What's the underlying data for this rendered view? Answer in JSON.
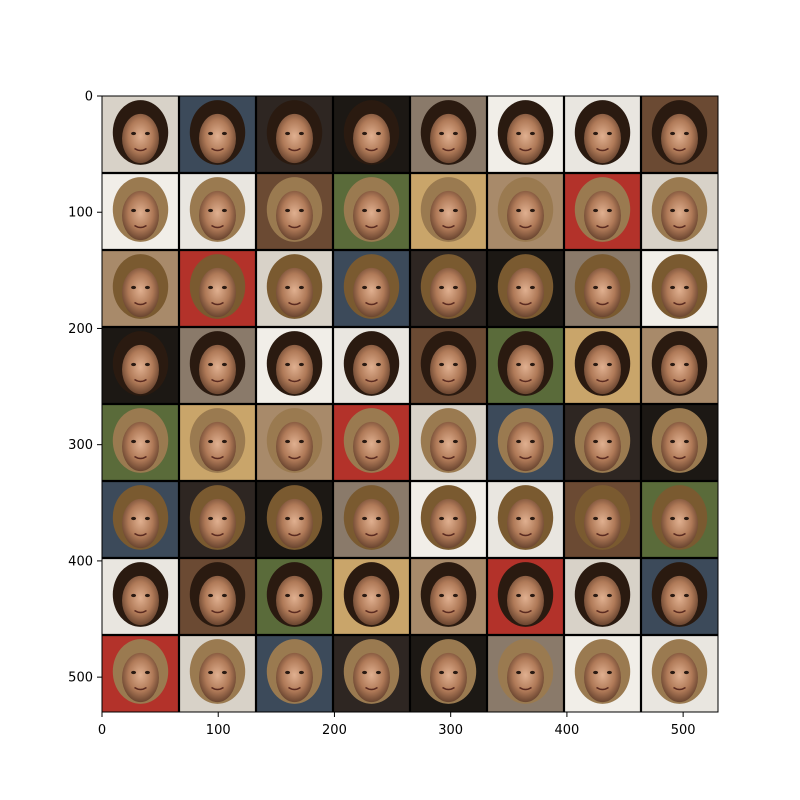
{
  "figure": {
    "x_axis": {
      "range": [
        0,
        530
      ],
      "ticks": [
        0,
        100,
        200,
        300,
        400,
        500
      ]
    },
    "y_axis": {
      "range": [
        0,
        530
      ],
      "inverted": true,
      "ticks": [
        0,
        100,
        200,
        300,
        400,
        500
      ]
    }
  },
  "image_grid": {
    "rows": 8,
    "columns": 8,
    "tile_count": 64,
    "content": "generated face portraits",
    "grid_line_color": "#000000"
  }
}
